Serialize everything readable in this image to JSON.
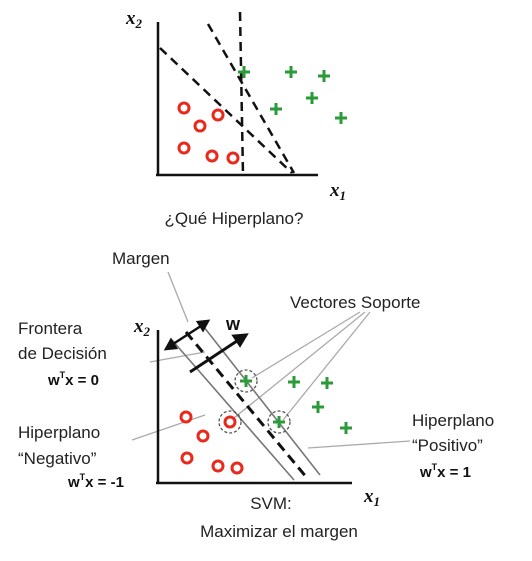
{
  "top_diagram": {
    "axis_y": "x",
    "axis_y_sub": "2",
    "axis_x": "x",
    "axis_x_sub": "1",
    "caption": "¿Qué Hiperplano?"
  },
  "bottom_diagram": {
    "axis_y": "x",
    "axis_y_sub": "2",
    "axis_x": "x",
    "axis_x_sub": "1",
    "margin_label": "Margen",
    "support_vectors_label": "Vectores Soporte",
    "w_label": "w",
    "decision_boundary_line1": "Frontera",
    "decision_boundary_line2": "de Decisión",
    "decision_eq_w": "w",
    "decision_eq_t": "T",
    "decision_eq_rest": "x = 0",
    "negative_line1": "Hiperplano",
    "negative_line2": "“Negativo”",
    "negative_eq_w": "w",
    "negative_eq_t": "T",
    "negative_eq_rest": "x = -1",
    "positive_line1": "Hiperplano",
    "positive_line2": "“Positivo”",
    "positive_eq_w": "w",
    "positive_eq_t": "T",
    "positive_eq_rest": "x = 1",
    "caption_line1": "SVM:",
    "caption_line2": "Maximizar el margen"
  },
  "colors": {
    "negative_class": "#e8291c",
    "positive_class": "#2a9a3a",
    "lines": "#111111",
    "callout": "#aaaaaa"
  }
}
